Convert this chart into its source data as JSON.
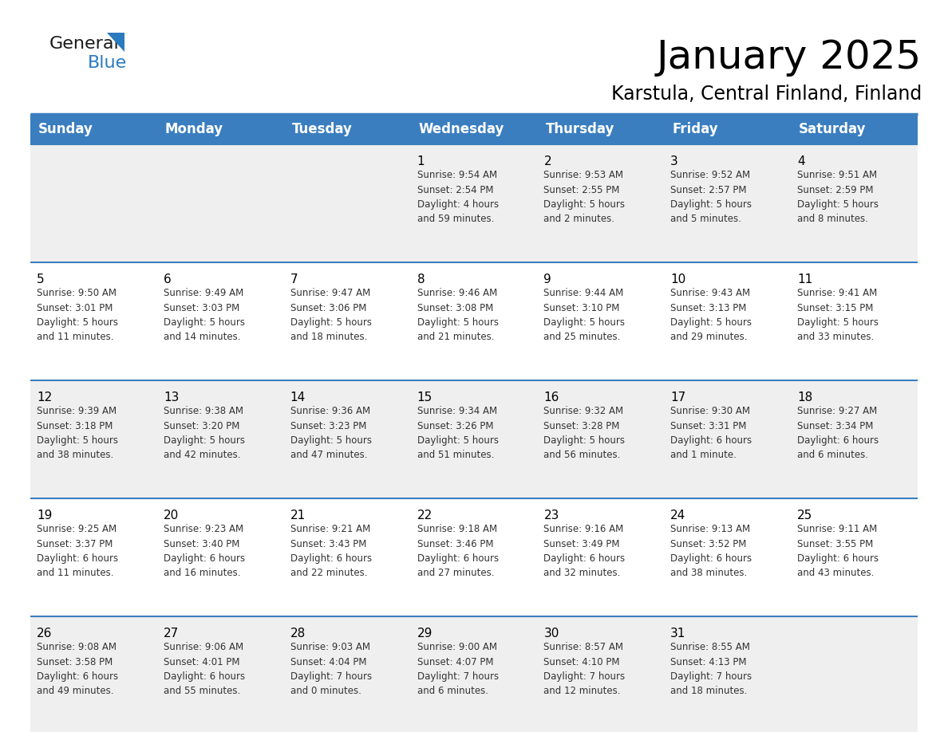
{
  "title": "January 2025",
  "subtitle": "Karstula, Central Finland, Finland",
  "header_bg": "#3a7ebf",
  "header_text_color": "#ffffff",
  "day_headers": [
    "Sunday",
    "Monday",
    "Tuesday",
    "Wednesday",
    "Thursday",
    "Friday",
    "Saturday"
  ],
  "row_bg_even": "#efefef",
  "row_bg_odd": "#ffffff",
  "border_color": "#3a7ebf",
  "num_cols": 7,
  "days": [
    {
      "date": "",
      "text": ""
    },
    {
      "date": "",
      "text": ""
    },
    {
      "date": "",
      "text": ""
    },
    {
      "date": "1",
      "text": "Sunrise: 9:54 AM\nSunset: 2:54 PM\nDaylight: 4 hours\nand 59 minutes."
    },
    {
      "date": "2",
      "text": "Sunrise: 9:53 AM\nSunset: 2:55 PM\nDaylight: 5 hours\nand 2 minutes."
    },
    {
      "date": "3",
      "text": "Sunrise: 9:52 AM\nSunset: 2:57 PM\nDaylight: 5 hours\nand 5 minutes."
    },
    {
      "date": "4",
      "text": "Sunrise: 9:51 AM\nSunset: 2:59 PM\nDaylight: 5 hours\nand 8 minutes."
    },
    {
      "date": "5",
      "text": "Sunrise: 9:50 AM\nSunset: 3:01 PM\nDaylight: 5 hours\nand 11 minutes."
    },
    {
      "date": "6",
      "text": "Sunrise: 9:49 AM\nSunset: 3:03 PM\nDaylight: 5 hours\nand 14 minutes."
    },
    {
      "date": "7",
      "text": "Sunrise: 9:47 AM\nSunset: 3:06 PM\nDaylight: 5 hours\nand 18 minutes."
    },
    {
      "date": "8",
      "text": "Sunrise: 9:46 AM\nSunset: 3:08 PM\nDaylight: 5 hours\nand 21 minutes."
    },
    {
      "date": "9",
      "text": "Sunrise: 9:44 AM\nSunset: 3:10 PM\nDaylight: 5 hours\nand 25 minutes."
    },
    {
      "date": "10",
      "text": "Sunrise: 9:43 AM\nSunset: 3:13 PM\nDaylight: 5 hours\nand 29 minutes."
    },
    {
      "date": "11",
      "text": "Sunrise: 9:41 AM\nSunset: 3:15 PM\nDaylight: 5 hours\nand 33 minutes."
    },
    {
      "date": "12",
      "text": "Sunrise: 9:39 AM\nSunset: 3:18 PM\nDaylight: 5 hours\nand 38 minutes."
    },
    {
      "date": "13",
      "text": "Sunrise: 9:38 AM\nSunset: 3:20 PM\nDaylight: 5 hours\nand 42 minutes."
    },
    {
      "date": "14",
      "text": "Sunrise: 9:36 AM\nSunset: 3:23 PM\nDaylight: 5 hours\nand 47 minutes."
    },
    {
      "date": "15",
      "text": "Sunrise: 9:34 AM\nSunset: 3:26 PM\nDaylight: 5 hours\nand 51 minutes."
    },
    {
      "date": "16",
      "text": "Sunrise: 9:32 AM\nSunset: 3:28 PM\nDaylight: 5 hours\nand 56 minutes."
    },
    {
      "date": "17",
      "text": "Sunrise: 9:30 AM\nSunset: 3:31 PM\nDaylight: 6 hours\nand 1 minute."
    },
    {
      "date": "18",
      "text": "Sunrise: 9:27 AM\nSunset: 3:34 PM\nDaylight: 6 hours\nand 6 minutes."
    },
    {
      "date": "19",
      "text": "Sunrise: 9:25 AM\nSunset: 3:37 PM\nDaylight: 6 hours\nand 11 minutes."
    },
    {
      "date": "20",
      "text": "Sunrise: 9:23 AM\nSunset: 3:40 PM\nDaylight: 6 hours\nand 16 minutes."
    },
    {
      "date": "21",
      "text": "Sunrise: 9:21 AM\nSunset: 3:43 PM\nDaylight: 6 hours\nand 22 minutes."
    },
    {
      "date": "22",
      "text": "Sunrise: 9:18 AM\nSunset: 3:46 PM\nDaylight: 6 hours\nand 27 minutes."
    },
    {
      "date": "23",
      "text": "Sunrise: 9:16 AM\nSunset: 3:49 PM\nDaylight: 6 hours\nand 32 minutes."
    },
    {
      "date": "24",
      "text": "Sunrise: 9:13 AM\nSunset: 3:52 PM\nDaylight: 6 hours\nand 38 minutes."
    },
    {
      "date": "25",
      "text": "Sunrise: 9:11 AM\nSunset: 3:55 PM\nDaylight: 6 hours\nand 43 minutes."
    },
    {
      "date": "26",
      "text": "Sunrise: 9:08 AM\nSunset: 3:58 PM\nDaylight: 6 hours\nand 49 minutes."
    },
    {
      "date": "27",
      "text": "Sunrise: 9:06 AM\nSunset: 4:01 PM\nDaylight: 6 hours\nand 55 minutes."
    },
    {
      "date": "28",
      "text": "Sunrise: 9:03 AM\nSunset: 4:04 PM\nDaylight: 7 hours\nand 0 minutes."
    },
    {
      "date": "29",
      "text": "Sunrise: 9:00 AM\nSunset: 4:07 PM\nDaylight: 7 hours\nand 6 minutes."
    },
    {
      "date": "30",
      "text": "Sunrise: 8:57 AM\nSunset: 4:10 PM\nDaylight: 7 hours\nand 12 minutes."
    },
    {
      "date": "31",
      "text": "Sunrise: 8:55 AM\nSunset: 4:13 PM\nDaylight: 7 hours\nand 18 minutes."
    },
    {
      "date": "",
      "text": ""
    }
  ],
  "logo_general_color": "#1a1a1a",
  "logo_blue_color": "#2a7abf",
  "logo_triangle_color": "#2a7abf",
  "title_fontsize": 36,
  "subtitle_fontsize": 17,
  "header_fontsize": 12,
  "date_fontsize": 11,
  "cell_text_fontsize": 8.5
}
